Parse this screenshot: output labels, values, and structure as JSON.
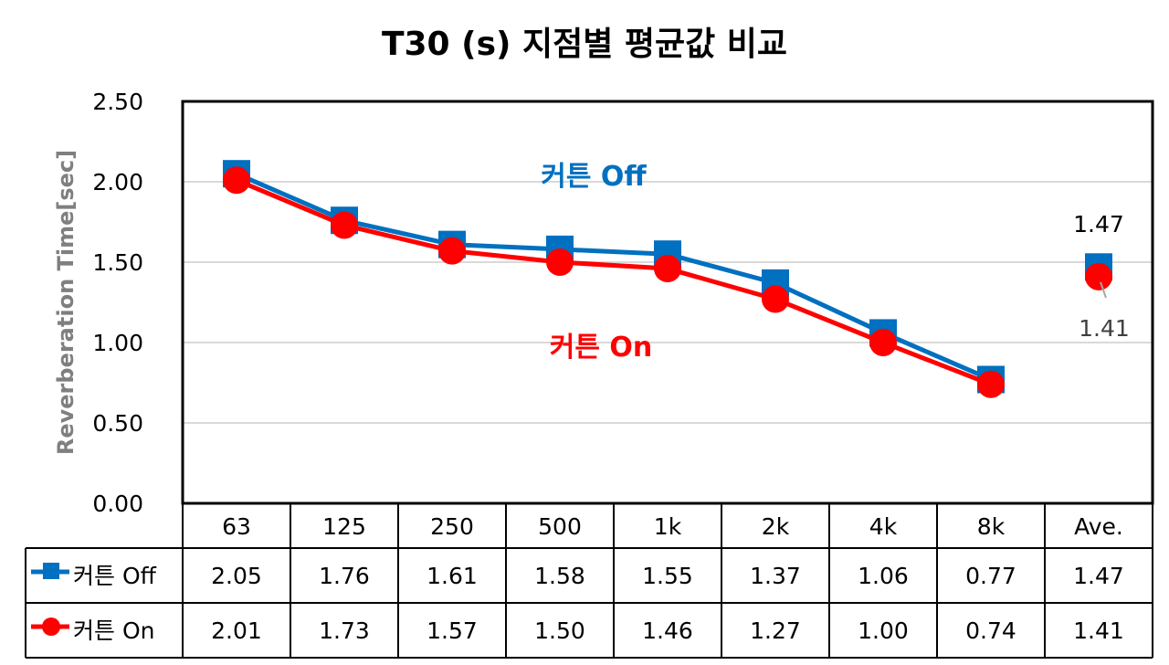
{
  "chart_data": {
    "type": "line",
    "title": "T30 (s) 지점별 평균값 비교",
    "ylabel": "Reverberation Time[sec]",
    "xlabel": "",
    "ylim": [
      0,
      2.5
    ],
    "yticks": [
      "0.00",
      "0.50",
      "1.00",
      "1.50",
      "2.00",
      "2.50"
    ],
    "categories": [
      "63",
      "125",
      "250",
      "500",
      "1k",
      "2k",
      "4k",
      "8k",
      "Ave."
    ],
    "grid": true,
    "legend": "data-table",
    "series": [
      {
        "name": "커튼 Off",
        "color": "#0070c0",
        "marker": "square",
        "values": [
          2.05,
          1.76,
          1.61,
          1.58,
          1.55,
          1.37,
          1.06,
          0.77,
          1.47
        ],
        "value_labels": [
          "2.05",
          "1.76",
          "1.61",
          "1.58",
          "1.55",
          "1.37",
          "1.06",
          "0.77",
          "1.47"
        ]
      },
      {
        "name": "커튼 On",
        "color": "#ff0000",
        "marker": "circle",
        "values": [
          2.01,
          1.73,
          1.57,
          1.5,
          1.46,
          1.27,
          1.0,
          0.74,
          1.41
        ],
        "value_labels": [
          "2.01",
          "1.73",
          "1.57",
          "1.50",
          "1.46",
          "1.27",
          "1.00",
          "0.74",
          "1.41"
        ]
      }
    ],
    "annotations": [
      {
        "text": "커튼 Off",
        "color": "#0070c0"
      },
      {
        "text": "커튼 On",
        "color": "#ff0000"
      }
    ],
    "ave_labels": {
      "off": "1.47",
      "on": "1.41"
    }
  }
}
